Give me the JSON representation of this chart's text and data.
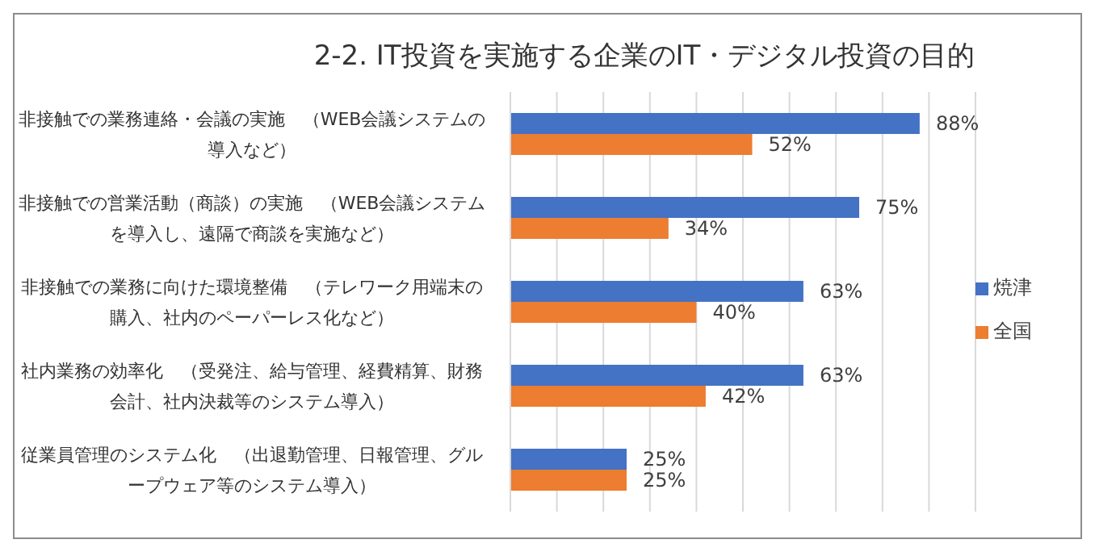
{
  "chart_data": {
    "type": "bar",
    "orientation": "horizontal",
    "title": "2-2.  IT投資を実施する企業のIT・デジタル投資の目的",
    "categories": [
      "非接触での業務連絡・会議の実施　（WEB会議システムの導入など）",
      "非接触での営業活動（商談）の実施　（WEB会議システムを導入し、遠隔で商談を実施など）",
      "非接触での業務に向けた環境整備　（テレワーク用端末の購入、社内のペーパーレス化など）",
      "社内業務の効率化　（受発注、給与管理、経費精算、財務会計、社内決裁等のシステム導入）",
      "従業員管理のシステム化　（出退勤管理、日報管理、グループウェア等のシステム導入）"
    ],
    "series": [
      {
        "name": "焼津",
        "color": "#4472c4",
        "values": [
          88,
          75,
          63,
          63,
          25
        ],
        "value_labels": [
          "88%",
          "75%",
          "63%",
          "63%",
          "25%"
        ]
      },
      {
        "name": "全国",
        "color": "#ed7d31",
        "values": [
          52,
          34,
          40,
          42,
          25
        ],
        "value_labels": [
          "52%",
          "34%",
          "40%",
          "42%",
          "25%"
        ]
      }
    ],
    "xlim": [
      0,
      100
    ],
    "tick_labels": "y",
    "grid": "x",
    "legend": "right"
  }
}
